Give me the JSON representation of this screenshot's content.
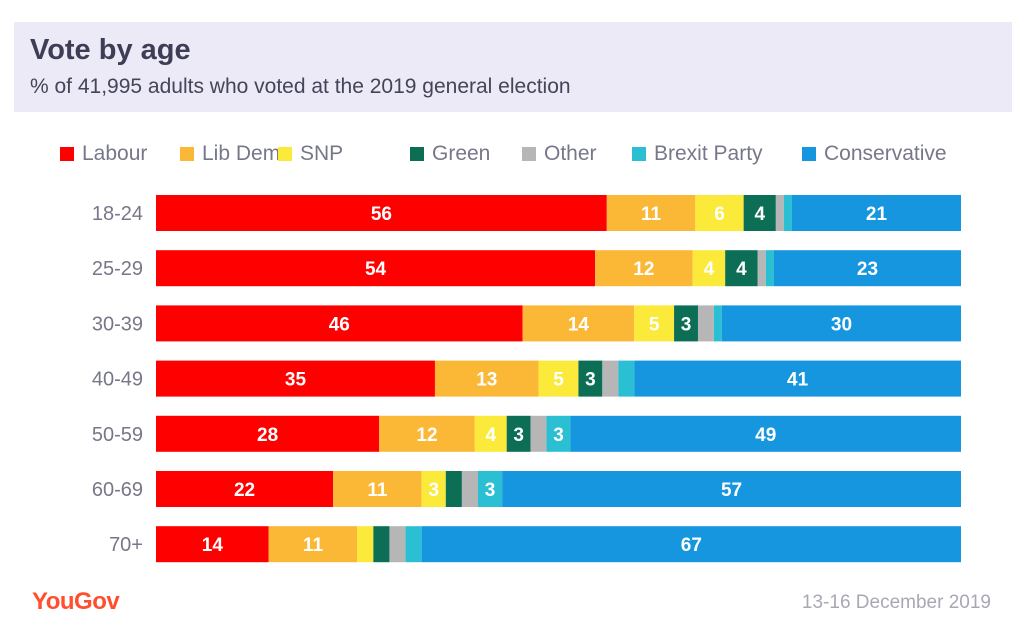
{
  "header": {
    "title": "Vote by age",
    "subtitle": "% of 41,995 adults who voted at the 2019 general election"
  },
  "footer": {
    "brand": "YouGov",
    "date": "13-16 December 2019"
  },
  "colors": {
    "header_bg": "#eceaf6",
    "label_text": "#77778a"
  },
  "chart_data": {
    "type": "bar",
    "orientation": "horizontal",
    "stacked": true,
    "title": "Vote by age",
    "subtitle": "% of 41,995 adults who voted at the 2019 general election",
    "xlabel": "",
    "ylabel": "",
    "xlim": [
      0,
      100
    ],
    "legend_position": "top",
    "categories": [
      "18-24",
      "25-29",
      "30-39",
      "40-49",
      "50-59",
      "60-69",
      "70+"
    ],
    "series": [
      {
        "name": "Labour",
        "color": "#ff0000",
        "values": [
          56,
          54,
          46,
          35,
          28,
          22,
          14
        ],
        "labels": [
          "56",
          "54",
          "46",
          "35",
          "28",
          "22",
          "14"
        ]
      },
      {
        "name": "Lib Dem",
        "color": "#fbb836",
        "values": [
          11,
          12,
          14,
          13,
          12,
          11,
          11
        ],
        "labels": [
          "11",
          "12",
          "14",
          "13",
          "12",
          "11",
          "11"
        ]
      },
      {
        "name": "SNP",
        "color": "#fbea3a",
        "values": [
          6,
          4,
          5,
          5,
          4,
          3,
          2
        ],
        "labels": [
          "6",
          "4",
          "5",
          "5",
          "4",
          "3",
          ""
        ]
      },
      {
        "name": "Green",
        "color": "#0b6e55",
        "values": [
          4,
          4,
          3,
          3,
          3,
          2,
          2
        ],
        "labels": [
          "4",
          "4",
          "3",
          "3",
          "3",
          "",
          ""
        ]
      },
      {
        "name": "Other",
        "color": "#b6b6b6",
        "values": [
          1,
          1,
          2,
          2,
          2,
          2,
          2
        ],
        "labels": [
          "",
          "",
          "",
          "",
          "",
          "",
          ""
        ]
      },
      {
        "name": "Brexit Party",
        "color": "#2bbfd3",
        "values": [
          1,
          1,
          1,
          2,
          3,
          3,
          2
        ],
        "labels": [
          "",
          "",
          "",
          "",
          "3",
          "3",
          ""
        ]
      },
      {
        "name": "Conservative",
        "color": "#1596df",
        "values": [
          21,
          23,
          30,
          41,
          49,
          57,
          67
        ],
        "labels": [
          "21",
          "23",
          "30",
          "41",
          "49",
          "57",
          "67"
        ]
      }
    ]
  }
}
